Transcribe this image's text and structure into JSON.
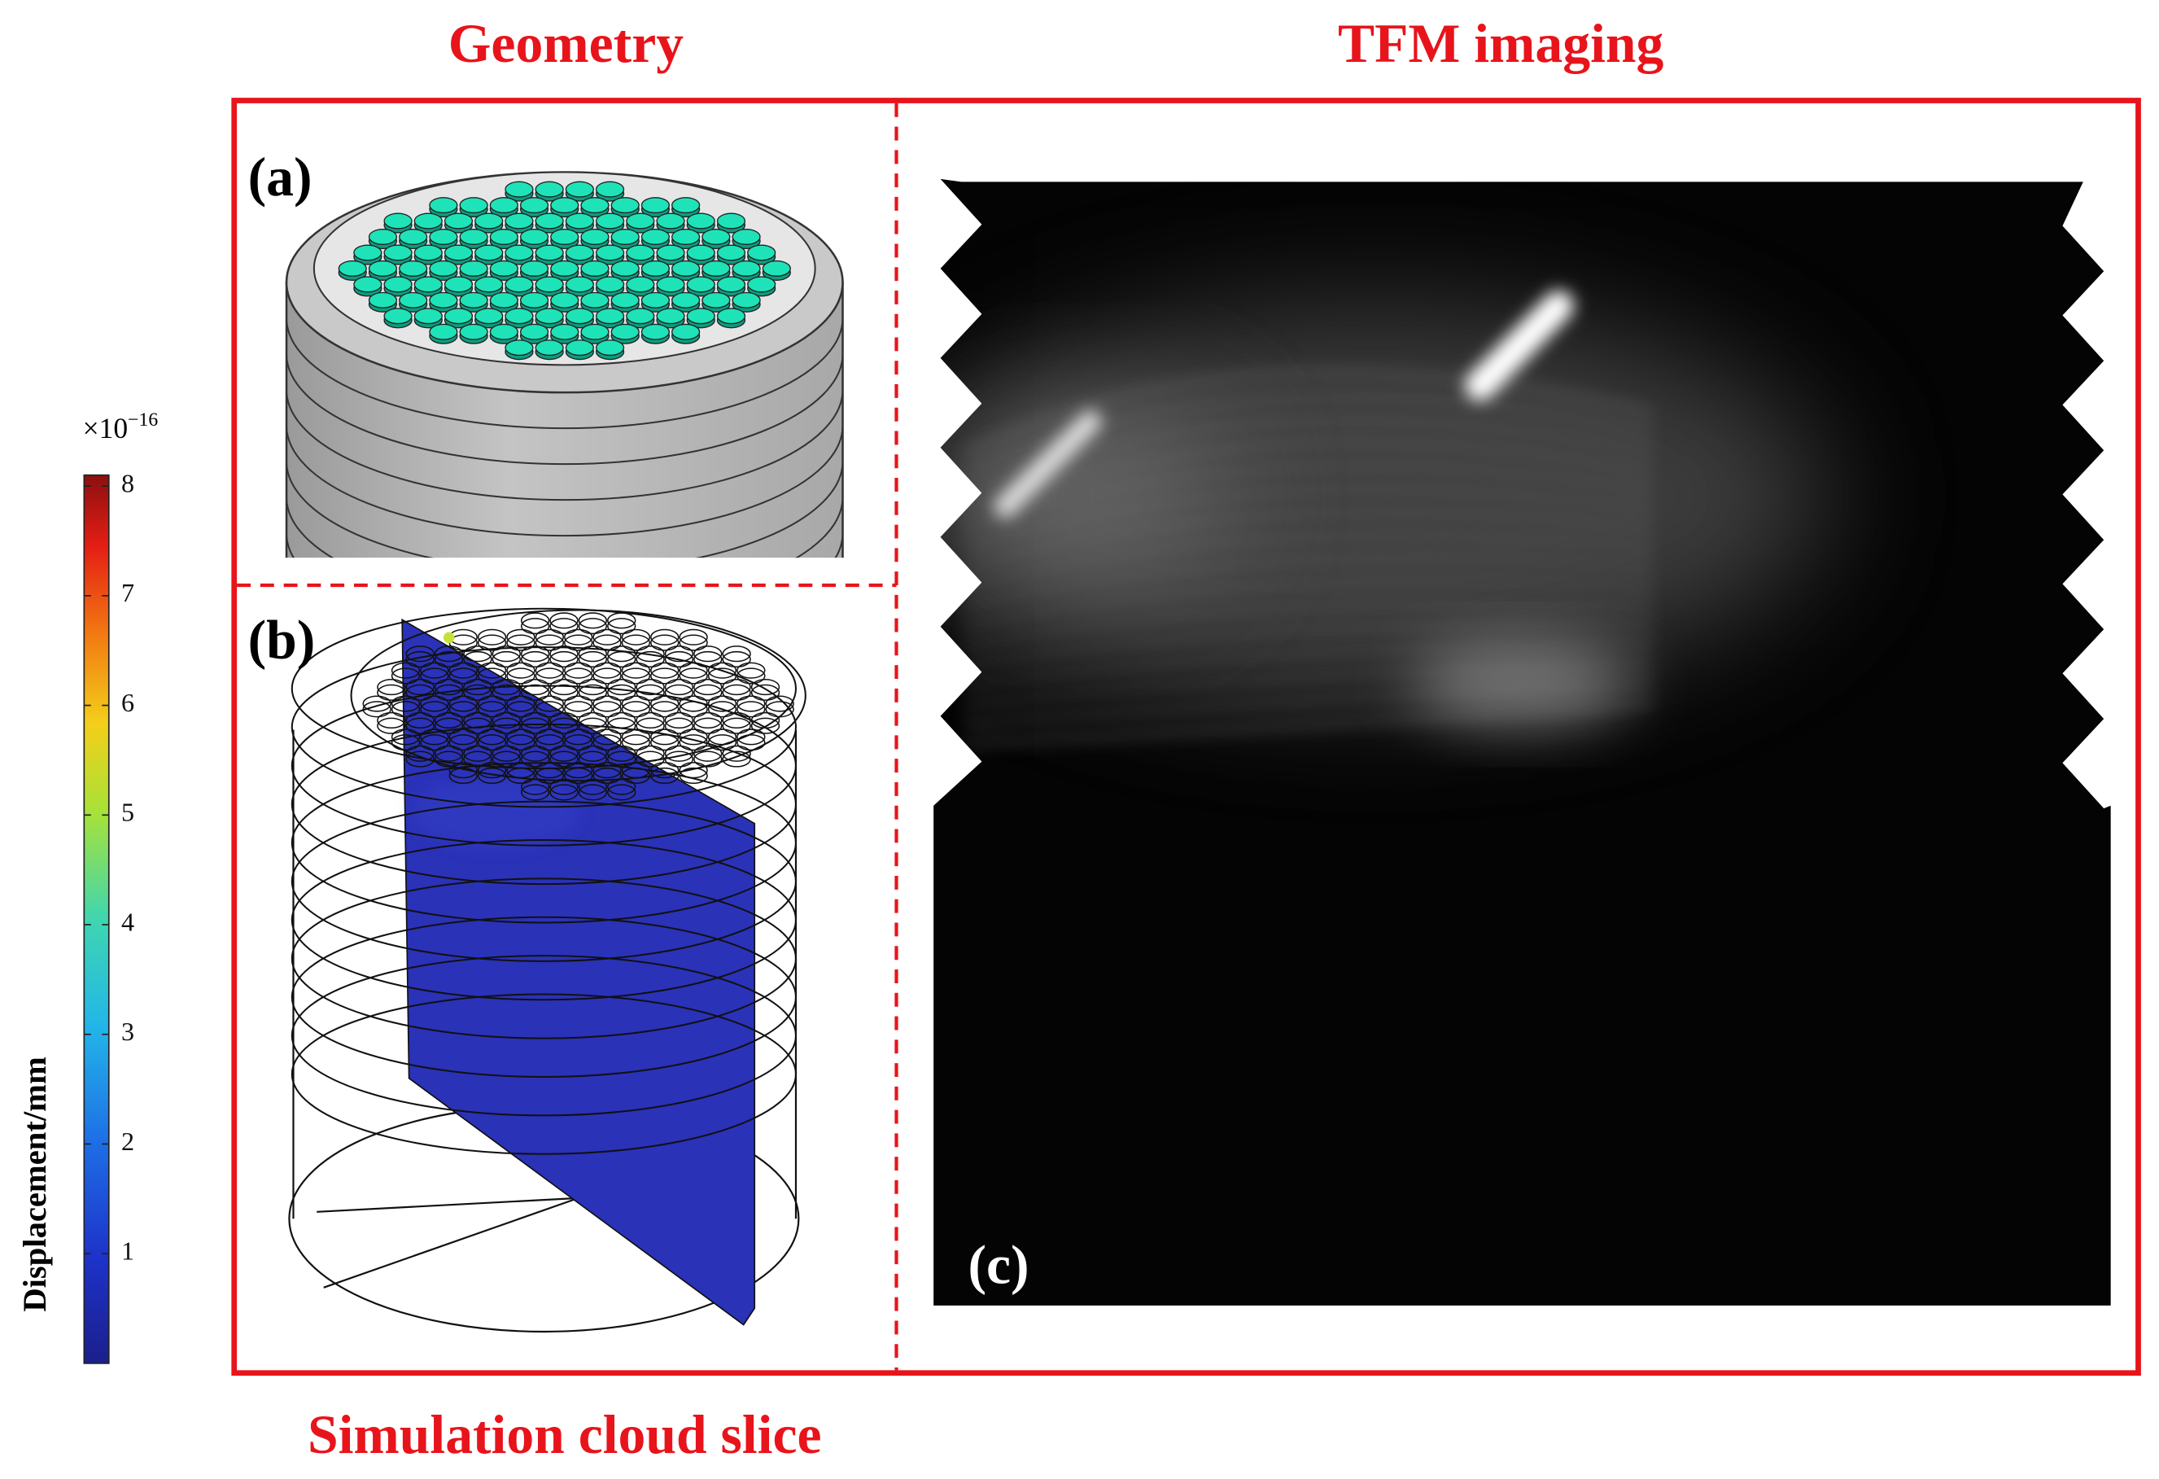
{
  "headings": {
    "left": "Geometry",
    "right": "TFM imaging",
    "bottom": "Simulation cloud slice"
  },
  "panels": {
    "a": "(a)",
    "b": "(b)",
    "c": "(c)"
  },
  "colorbar": {
    "label": "Displacement/mm",
    "multiplier": "×10",
    "exponent": "−16",
    "lim": [
      0,
      8.1
    ],
    "ticks": [
      1,
      2,
      3,
      4,
      5,
      6,
      7,
      8
    ]
  }
}
